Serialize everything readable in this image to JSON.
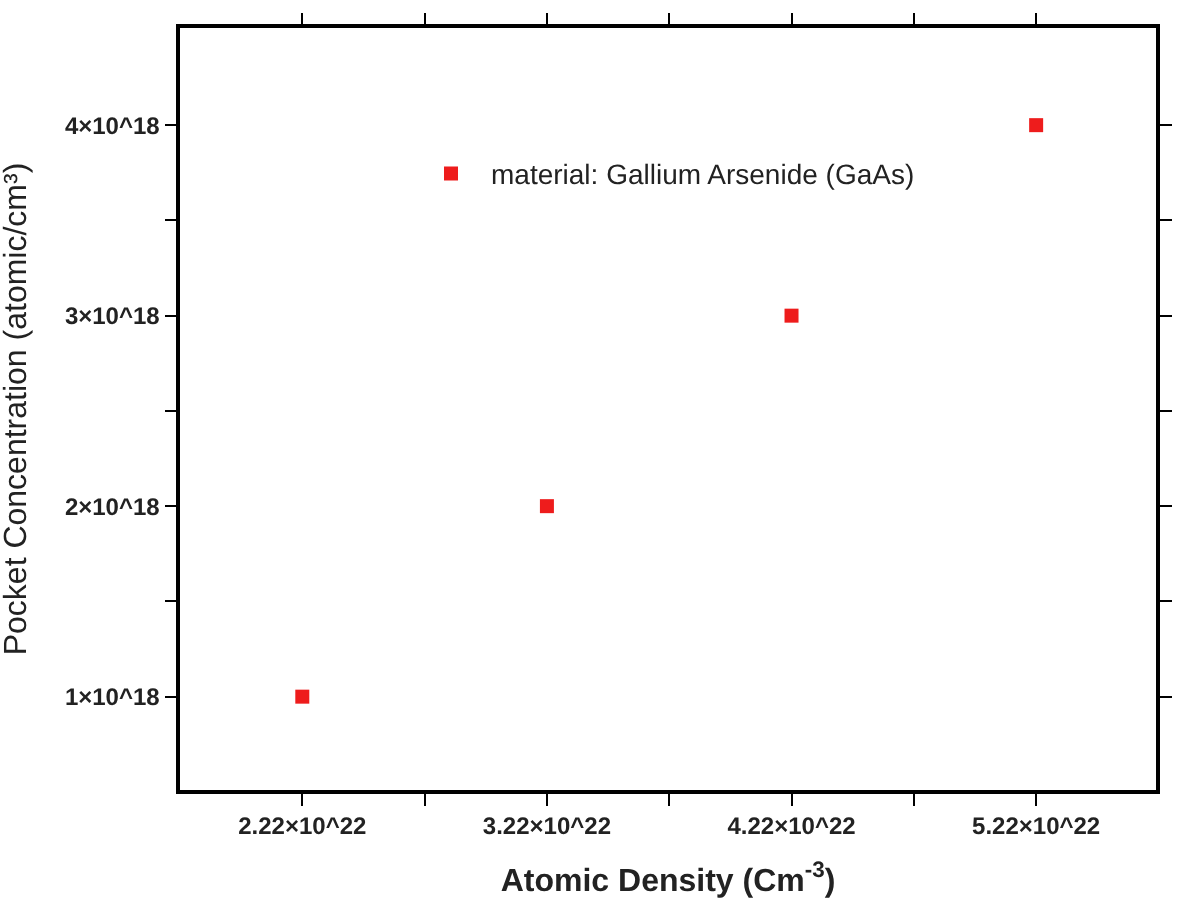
{
  "chart_data": {
    "type": "scatter",
    "xlabel": "Atomic Density (Cm$^{-3}$)",
    "ylabel": "Pocket Concentration (atomic/cm³)",
    "x": [
      2.22e+22,
      3.22e+22,
      4.22e+22,
      5.22e+22
    ],
    "series": [
      {
        "name": "material: Gallium Arsenide (GaAs)",
        "color": "#ee1c1c",
        "values": [
          1e+18,
          2e+18,
          3e+18,
          4e+18
        ]
      }
    ],
    "xlim": [
      1.72e+22,
      5.71e+22
    ],
    "ylim": [
      5.1e+17,
      4.51e+18
    ],
    "xticks": [
      {
        "value": 2.22e+22,
        "label": "2.22×10^22"
      },
      {
        "value": 2.72e+22,
        "label": null
      },
      {
        "value": 3.22e+22,
        "label": "3.22×10^22"
      },
      {
        "value": 3.72e+22,
        "label": null
      },
      {
        "value": 4.22e+22,
        "label": "4.22×10^22"
      },
      {
        "value": 4.72e+22,
        "label": null
      },
      {
        "value": 5.22e+22,
        "label": "5.22×10^22"
      }
    ],
    "yticks": [
      {
        "value": 1e+18,
        "label": "1×10^18"
      },
      {
        "value": 1.5e+18,
        "label": null
      },
      {
        "value": 2e+18,
        "label": "2×10^18"
      },
      {
        "value": 2.5e+18,
        "label": null
      },
      {
        "value": 3e+18,
        "label": "3×10^18"
      },
      {
        "value": 3.5e+18,
        "label": null
      },
      {
        "value": 4e+18,
        "label": "4×10^18"
      }
    ],
    "marker": "square",
    "legend": "top"
  }
}
